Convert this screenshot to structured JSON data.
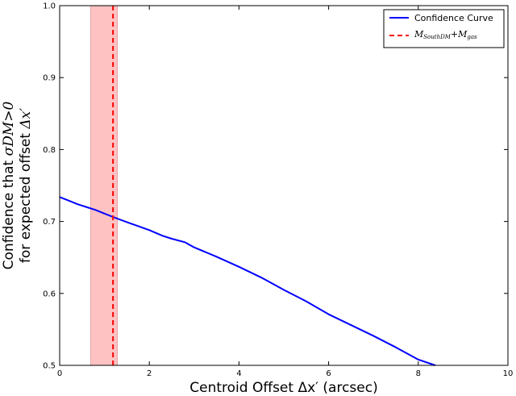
{
  "chart_data": {
    "type": "line",
    "xlabel": "Centroid Offset Δx′ (arcsec)",
    "ylabel": {
      "line1_text": "Confidence that ",
      "line1_math": "σDM>0",
      "line2_text": "for expected offset ",
      "line2_math": "Δx′"
    },
    "xlim": [
      0,
      10
    ],
    "ylim": [
      0.5,
      1.0
    ],
    "xticks": [
      "0",
      "2",
      "4",
      "6",
      "8",
      "10"
    ],
    "yticks": [
      "0.5",
      "0.6",
      "0.7",
      "0.8",
      "0.9",
      "1.0"
    ],
    "grid": false,
    "legend_position": "top-right",
    "series": [
      {
        "name": "Confidence Curve",
        "color": "#0000ff",
        "style": "solid",
        "x": [
          0,
          0.2,
          0.4,
          0.6,
          0.8,
          1.0,
          1.2,
          1.5,
          2.0,
          2.3,
          2.5,
          2.8,
          3.0,
          3.5,
          4.0,
          4.5,
          5.0,
          5.5,
          6.0,
          6.5,
          7.0,
          7.5,
          8.0,
          8.38
        ],
        "y": [
          0.734,
          0.729,
          0.724,
          0.72,
          0.716,
          0.711,
          0.706,
          0.699,
          0.688,
          0.68,
          0.676,
          0.671,
          0.664,
          0.651,
          0.637,
          0.622,
          0.605,
          0.589,
          0.571,
          0.556,
          0.541,
          0.525,
          0.508,
          0.5
        ]
      }
    ],
    "vline": {
      "name": "M_SouthDM + M_gas",
      "label_parts": [
        "M",
        "SouthDM",
        "+M",
        "gas"
      ],
      "x": 1.19,
      "color": "#ff0000",
      "style": "dashed"
    },
    "band": {
      "x_min": 0.69,
      "x_max": 1.29,
      "color": "#ff9999"
    }
  }
}
